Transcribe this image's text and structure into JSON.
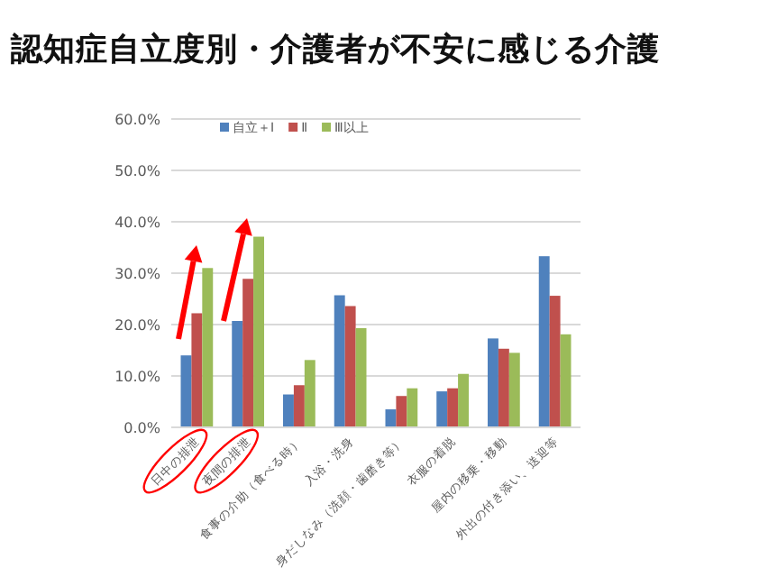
{
  "chart_data": {
    "type": "bar",
    "title": "認知症自立度別・介護者が不安に感じる介護",
    "categories": [
      "日中の排泄",
      "夜間の排泄",
      "食事の介助（食べる時）",
      "入浴・洗身",
      "身だしなみ（洗顔・歯磨き等）",
      "衣服の着脱",
      "屋内の移乗・移動",
      "外出の付き添い、送迎等"
    ],
    "series": [
      {
        "name": "自立＋Ⅰ",
        "color": "#4f81bd",
        "values": [
          14.0,
          20.7,
          6.4,
          25.7,
          3.5,
          7.0,
          17.3,
          33.3
        ]
      },
      {
        "name": "Ⅱ",
        "color": "#c0504d",
        "values": [
          22.2,
          28.9,
          8.2,
          23.6,
          6.1,
          7.6,
          15.3,
          25.6
        ]
      },
      {
        "name": "Ⅲ以上",
        "color": "#9bbb59",
        "values": [
          31.0,
          37.1,
          13.1,
          19.3,
          7.6,
          10.4,
          14.5,
          18.1
        ]
      }
    ],
    "ylim": [
      0,
      60
    ],
    "yticks": [
      {
        "value": 0,
        "label": "0.0%"
      },
      {
        "value": 10,
        "label": "10.0%"
      },
      {
        "value": 20,
        "label": "20.0%"
      },
      {
        "value": 30,
        "label": "30.0%"
      },
      {
        "value": 40,
        "label": "40.0%"
      },
      {
        "value": 50,
        "label": "50.0%"
      },
      {
        "value": 60,
        "label": "60.0%"
      }
    ],
    "grid": "y",
    "legend": "top"
  }
}
